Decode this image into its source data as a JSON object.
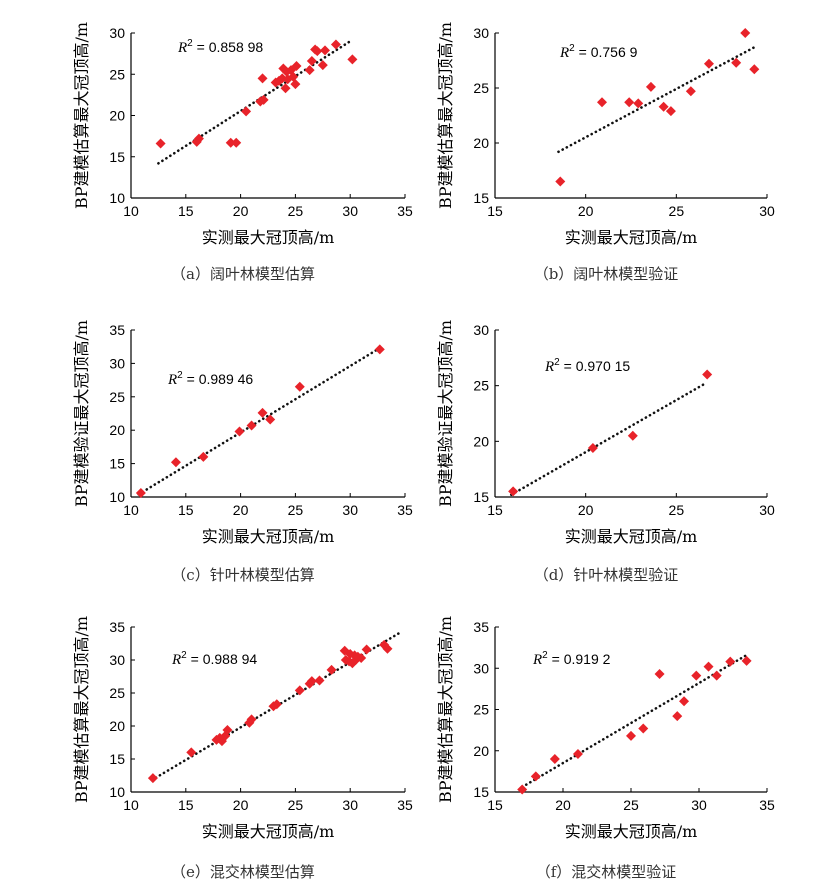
{
  "colors": {
    "marker": "#e8232a",
    "trendline": "#111111",
    "axis": "#000000",
    "caption": "#333333"
  },
  "chart_data": [
    {
      "type": "scatter",
      "id": "a",
      "caption": "（a）阔叶林模型估算",
      "xlabel": "实测最大冠顶高/m",
      "ylabel": "BP建模估算最大冠顶高/m",
      "xlim": [
        10,
        35
      ],
      "ylim": [
        10,
        30
      ],
      "xticks": [
        10,
        15,
        20,
        25,
        30,
        35
      ],
      "yticks": [
        10,
        15,
        20,
        25,
        30
      ],
      "r2_prefix": "R",
      "r2_sup": "2",
      "r2_value": " = 0.858 98",
      "trendline": [
        [
          12.5,
          14.2
        ],
        [
          30.0,
          29.0
        ]
      ],
      "points": [
        [
          12.7,
          16.6
        ],
        [
          16.0,
          16.8
        ],
        [
          16.2,
          17.2
        ],
        [
          19.1,
          16.7
        ],
        [
          19.6,
          16.7
        ],
        [
          20.5,
          20.5
        ],
        [
          21.8,
          21.7
        ],
        [
          22.0,
          24.5
        ],
        [
          22.1,
          21.9
        ],
        [
          23.2,
          24.0
        ],
        [
          23.5,
          24.2
        ],
        [
          23.8,
          24.5
        ],
        [
          23.9,
          25.7
        ],
        [
          24.1,
          23.3
        ],
        [
          24.2,
          25.3
        ],
        [
          24.3,
          24.4
        ],
        [
          24.6,
          25.5
        ],
        [
          24.8,
          24.7
        ],
        [
          25.0,
          23.8
        ],
        [
          25.1,
          26.0
        ],
        [
          26.3,
          25.5
        ],
        [
          26.5,
          26.6
        ],
        [
          26.8,
          28.0
        ],
        [
          27.0,
          27.8
        ],
        [
          27.5,
          26.1
        ],
        [
          27.7,
          27.9
        ],
        [
          28.7,
          28.6
        ],
        [
          30.2,
          26.8
        ]
      ]
    },
    {
      "type": "scatter",
      "id": "b",
      "caption": "（b）阔叶林模型验证",
      "xlabel": "实测最大冠顶高/m",
      "ylabel": "BP建模估算最大冠顶高/m",
      "xlim": [
        15,
        30
      ],
      "ylim": [
        15,
        30
      ],
      "xticks": [
        15,
        20,
        25,
        30
      ],
      "yticks": [
        15,
        20,
        25,
        30
      ],
      "r2_prefix": "R",
      "r2_sup": "2",
      "r2_value": " = 0.756 9",
      "trendline": [
        [
          18.5,
          19.2
        ],
        [
          29.3,
          28.7
        ]
      ],
      "points": [
        [
          18.6,
          16.5
        ],
        [
          20.9,
          23.7
        ],
        [
          22.4,
          23.7
        ],
        [
          22.9,
          23.6
        ],
        [
          23.6,
          25.1
        ],
        [
          24.3,
          23.3
        ],
        [
          24.7,
          22.9
        ],
        [
          25.8,
          24.7
        ],
        [
          26.8,
          27.2
        ],
        [
          28.3,
          27.3
        ],
        [
          28.8,
          30.0
        ],
        [
          29.3,
          26.7
        ]
      ]
    },
    {
      "type": "scatter",
      "id": "c",
      "caption": "（c）针叶林模型估算",
      "xlabel": "实测最大冠顶高/m",
      "ylabel": "BP建模验证最大冠顶高/m",
      "xlim": [
        10,
        35
      ],
      "ylim": [
        10,
        35
      ],
      "xticks": [
        10,
        15,
        20,
        25,
        30,
        35
      ],
      "yticks": [
        10,
        15,
        20,
        25,
        30,
        35
      ],
      "r2_prefix": "R",
      "r2_sup": "2",
      "r2_value": " = 0.989 46",
      "trendline": [
        [
          10.7,
          10.4
        ],
        [
          32.8,
          32.4
        ]
      ],
      "points": [
        [
          10.9,
          10.6
        ],
        [
          14.1,
          15.2
        ],
        [
          16.6,
          16.0
        ],
        [
          19.9,
          19.8
        ],
        [
          21.0,
          20.7
        ],
        [
          22.0,
          22.6
        ],
        [
          22.7,
          21.6
        ],
        [
          25.4,
          26.5
        ],
        [
          32.7,
          32.1
        ]
      ]
    },
    {
      "type": "scatter",
      "id": "d",
      "caption": "（d）针叶林模型验证",
      "xlabel": "实测最大冠顶高/m",
      "ylabel": "BP建模验证最大冠顶高/m",
      "xlim": [
        15,
        30
      ],
      "ylim": [
        15,
        30
      ],
      "xticks": [
        15,
        20,
        25,
        30
      ],
      "yticks": [
        15,
        20,
        25,
        30
      ],
      "r2_prefix": "R",
      "r2_sup": "2",
      "r2_value": " = 0.970 15",
      "trendline": [
        [
          15.9,
          15.2
        ],
        [
          26.6,
          25.2
        ]
      ],
      "points": [
        [
          16.0,
          15.5
        ],
        [
          20.4,
          19.4
        ],
        [
          22.6,
          20.5
        ],
        [
          26.7,
          26.0
        ]
      ]
    },
    {
      "type": "scatter",
      "id": "e",
      "caption": "（e）混交林模型估算",
      "xlabel": "实测最大冠顶高/m",
      "ylabel": "BP建模估算最大冠顶高/m",
      "xlim": [
        10,
        35
      ],
      "ylim": [
        10,
        35
      ],
      "xticks": [
        10,
        15,
        20,
        25,
        30,
        35
      ],
      "yticks": [
        10,
        15,
        20,
        25,
        30,
        35
      ],
      "r2_prefix": "R",
      "r2_sup": "2",
      "r2_value": " = 0.988 94",
      "trendline": [
        [
          11.9,
          11.8
        ],
        [
          34.7,
          34.3
        ]
      ],
      "points": [
        [
          12.0,
          12.1
        ],
        [
          15.5,
          16.0
        ],
        [
          17.8,
          17.9
        ],
        [
          18.1,
          18.2
        ],
        [
          18.3,
          17.7
        ],
        [
          18.6,
          18.5
        ],
        [
          18.8,
          19.4
        ],
        [
          20.8,
          20.5
        ],
        [
          21.0,
          21.0
        ],
        [
          23.0,
          23.0
        ],
        [
          23.3,
          23.3
        ],
        [
          25.4,
          25.4
        ],
        [
          26.3,
          26.4
        ],
        [
          26.5,
          26.8
        ],
        [
          27.2,
          26.9
        ],
        [
          28.3,
          28.5
        ],
        [
          29.5,
          31.4
        ],
        [
          29.6,
          30.0
        ],
        [
          29.9,
          29.8
        ],
        [
          30.0,
          30.9
        ],
        [
          30.2,
          29.5
        ],
        [
          30.4,
          30.7
        ],
        [
          30.5,
          30.0
        ],
        [
          30.7,
          30.5
        ],
        [
          31.0,
          30.3
        ],
        [
          31.5,
          31.6
        ],
        [
          33.1,
          32.3
        ],
        [
          33.4,
          31.7
        ]
      ]
    },
    {
      "type": "scatter",
      "id": "f",
      "caption": "（f）混交林模型验证",
      "xlabel": "实测最大冠顶高/m",
      "ylabel": "BP建模估算最大冠顶高/m",
      "xlim": [
        15,
        35
      ],
      "ylim": [
        15,
        35
      ],
      "xticks": [
        15,
        20,
        25,
        30,
        35
      ],
      "yticks": [
        15,
        20,
        25,
        30,
        35
      ],
      "r2_prefix": "R",
      "r2_sup": "2",
      "r2_value": " = 0.919 2",
      "trendline": [
        [
          17.0,
          15.6
        ],
        [
          33.5,
          31.6
        ]
      ],
      "points": [
        [
          17.0,
          15.3
        ],
        [
          18.0,
          16.9
        ],
        [
          19.4,
          19.0
        ],
        [
          21.1,
          19.6
        ],
        [
          25.0,
          21.8
        ],
        [
          25.9,
          22.7
        ],
        [
          27.1,
          29.3
        ],
        [
          28.4,
          24.2
        ],
        [
          28.9,
          26.0
        ],
        [
          29.8,
          29.1
        ],
        [
          30.7,
          30.2
        ],
        [
          31.3,
          29.1
        ],
        [
          32.3,
          30.8
        ],
        [
          33.5,
          30.9
        ]
      ]
    }
  ]
}
